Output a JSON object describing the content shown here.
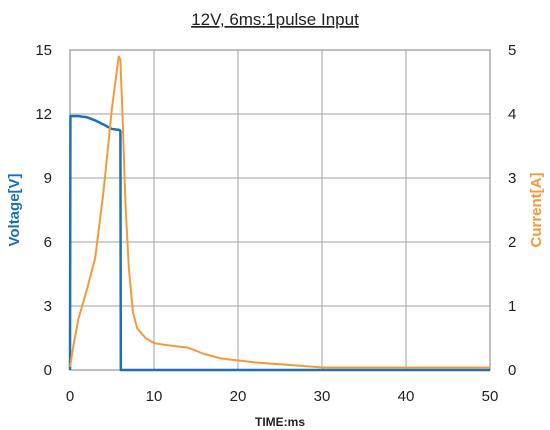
{
  "chart_data": {
    "type": "line",
    "title": "12V, 6ms:1pulse Input",
    "xlabel": "TIME:ms",
    "ylabel_left": "Voltage[V]",
    "ylabel_right": "Current[A]",
    "xlim": [
      0,
      50
    ],
    "ylim_left": [
      0,
      15
    ],
    "ylim_right": [
      0,
      5
    ],
    "x_ticks": [
      "0",
      "10",
      "20",
      "30",
      "40",
      "50"
    ],
    "y_ticks_left": [
      "0",
      "3",
      "6",
      "9",
      "12",
      "15"
    ],
    "y_ticks_right": [
      "0",
      "1",
      "2",
      "3",
      "4",
      "5"
    ],
    "grid": true,
    "colors": {
      "voltage": "#1f6fb5",
      "current": "#f39a3c",
      "grid": "#a0a0a0"
    },
    "series": [
      {
        "axis": "left",
        "color": "#1f6fb5",
        "x": [
          0,
          0.05,
          0.1,
          1,
          2,
          3,
          4,
          5,
          5.9,
          6.0,
          6.05,
          7,
          10,
          20,
          30,
          40,
          50
        ],
        "y": [
          0,
          11.9,
          11.9,
          11.9,
          11.85,
          11.7,
          11.5,
          11.3,
          11.25,
          11.2,
          0,
          0,
          0,
          0,
          0,
          0,
          0
        ]
      },
      {
        "axis": "right",
        "color": "#f39a3c",
        "x": [
          0,
          0.5,
          1,
          2,
          3,
          4,
          5,
          5.8,
          6.0,
          6.3,
          6.6,
          7,
          7.5,
          8,
          9,
          10,
          12,
          14,
          16,
          18,
          20,
          22,
          24,
          26,
          28,
          30,
          35,
          40,
          45,
          50
        ],
        "y": [
          0.05,
          0.45,
          0.8,
          1.25,
          1.75,
          2.8,
          4.1,
          4.9,
          4.85,
          3.8,
          2.6,
          1.6,
          0.9,
          0.65,
          0.5,
          0.42,
          0.38,
          0.35,
          0.25,
          0.18,
          0.15,
          0.12,
          0.1,
          0.08,
          0.06,
          0.04,
          0.04,
          0.04,
          0.04,
          0.04
        ]
      }
    ]
  }
}
